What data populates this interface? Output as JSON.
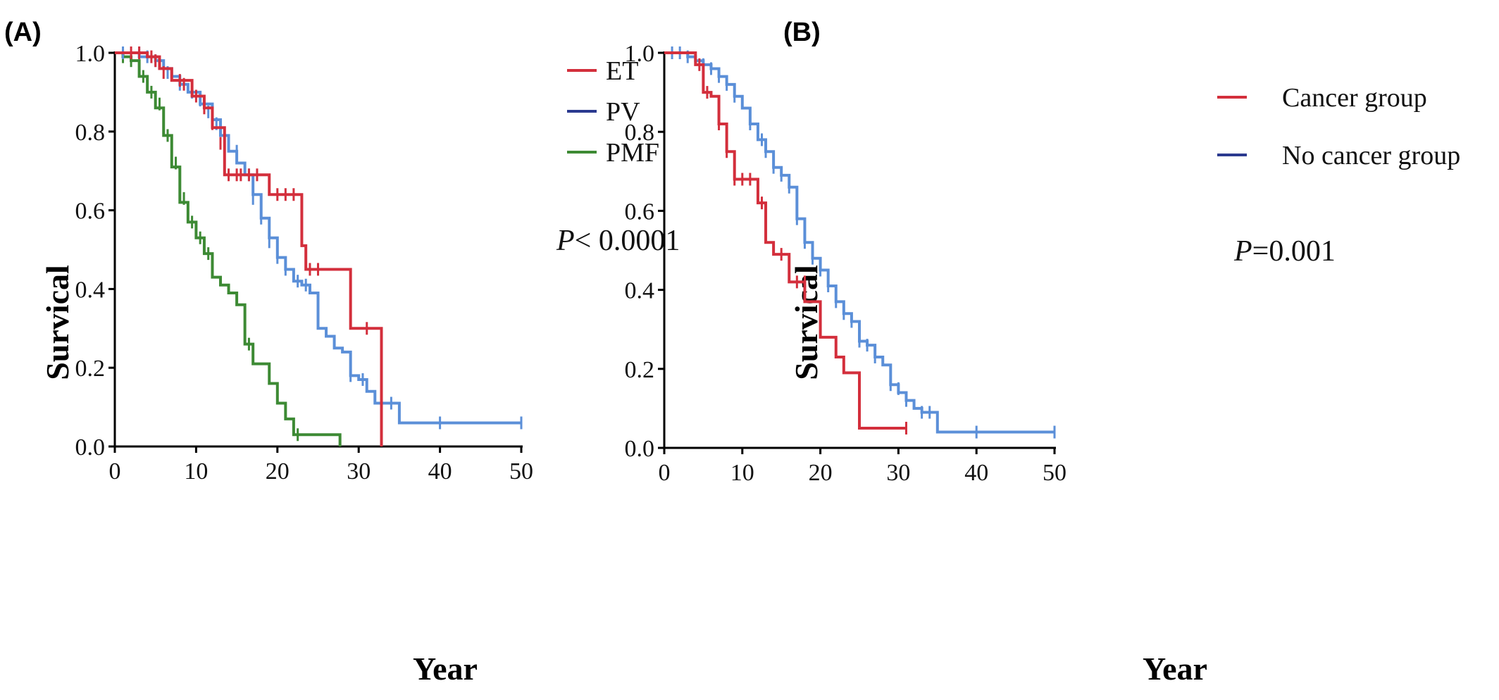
{
  "chart_data": [
    {
      "panel": "(A)",
      "type": "line",
      "xlabel": "Year",
      "ylabel": "Survical",
      "xlim": [
        0,
        50
      ],
      "ylim": [
        0,
        1
      ],
      "xticks": [
        "0",
        "10",
        "20",
        "30",
        "40",
        "50"
      ],
      "yticks": [
        "0.0",
        "0.2",
        "0.4",
        "0.6",
        "0.8",
        "1.0"
      ],
      "annotation": {
        "italic": "P",
        "rest": "< 0.0001"
      },
      "legend": "top-right",
      "series": [
        {
          "name": "ET",
          "color": "#d32f3c",
          "steps": [
            [
              0,
              1.0
            ],
            [
              4,
              0.99
            ],
            [
              5.5,
              0.96
            ],
            [
              7,
              0.93
            ],
            [
              9.5,
              0.89
            ],
            [
              11,
              0.86
            ],
            [
              12,
              0.81
            ],
            [
              13.5,
              0.69
            ],
            [
              19,
              0.64
            ],
            [
              23,
              0.51
            ],
            [
              23.5,
              0.45
            ],
            [
              29,
              0.3
            ],
            [
              32.8,
              0.0
            ]
          ],
          "censors": [
            [
              2,
              1.0
            ],
            [
              3,
              1.0
            ],
            [
              4.5,
              0.99
            ],
            [
              5,
              0.98
            ],
            [
              6,
              0.95
            ],
            [
              8,
              0.93
            ],
            [
              8.5,
              0.92
            ],
            [
              10,
              0.89
            ],
            [
              11,
              0.86
            ],
            [
              12,
              0.82
            ],
            [
              13,
              0.77
            ],
            [
              14,
              0.69
            ],
            [
              15,
              0.69
            ],
            [
              15.5,
              0.69
            ],
            [
              16.5,
              0.69
            ],
            [
              17.5,
              0.69
            ],
            [
              20,
              0.64
            ],
            [
              21,
              0.64
            ],
            [
              22,
              0.64
            ],
            [
              24,
              0.45
            ],
            [
              25,
              0.45
            ],
            [
              31,
              0.3
            ]
          ]
        },
        {
          "name": "PV",
          "color": "#5b8fd8",
          "steps": [
            [
              0,
              1.0
            ],
            [
              3,
              0.99
            ],
            [
              5,
              0.98
            ],
            [
              6,
              0.96
            ],
            [
              7,
              0.94
            ],
            [
              8,
              0.92
            ],
            [
              9,
              0.9
            ],
            [
              10.5,
              0.87
            ],
            [
              12,
              0.83
            ],
            [
              13,
              0.79
            ],
            [
              14,
              0.75
            ],
            [
              15,
              0.72
            ],
            [
              16,
              0.69
            ],
            [
              17,
              0.64
            ],
            [
              18,
              0.58
            ],
            [
              19,
              0.53
            ],
            [
              20,
              0.48
            ],
            [
              21,
              0.45
            ],
            [
              22,
              0.42
            ],
            [
              23,
              0.41
            ],
            [
              24,
              0.39
            ],
            [
              25,
              0.3
            ],
            [
              26,
              0.28
            ],
            [
              27,
              0.25
            ],
            [
              28,
              0.24
            ],
            [
              29,
              0.18
            ],
            [
              30,
              0.17
            ],
            [
              31,
              0.14
            ],
            [
              32,
              0.11
            ],
            [
              35,
              0.06
            ],
            [
              50,
              0.06
            ]
          ],
          "censors": [
            [
              1,
              1.0
            ],
            [
              3,
              1.0
            ],
            [
              4,
              0.99
            ],
            [
              5,
              0.98
            ],
            [
              6.5,
              0.95
            ],
            [
              8,
              0.92
            ],
            [
              9.5,
              0.9
            ],
            [
              10.5,
              0.88
            ],
            [
              11.5,
              0.85
            ],
            [
              12.5,
              0.82
            ],
            [
              13.5,
              0.79
            ],
            [
              15,
              0.75
            ],
            [
              16.5,
              0.69
            ],
            [
              17,
              0.63
            ],
            [
              18,
              0.58
            ],
            [
              19,
              0.52
            ],
            [
              20,
              0.48
            ],
            [
              21,
              0.45
            ],
            [
              22.5,
              0.42
            ],
            [
              23.5,
              0.41
            ],
            [
              29,
              0.18
            ],
            [
              30.5,
              0.17
            ],
            [
              34,
              0.11
            ],
            [
              40,
              0.06
            ],
            [
              50,
              0.06
            ]
          ]
        },
        {
          "name": "PMF",
          "color": "#3d8a34",
          "steps": [
            [
              0,
              1.0
            ],
            [
              1,
              0.99
            ],
            [
              2,
              0.98
            ],
            [
              3,
              0.94
            ],
            [
              4,
              0.9
            ],
            [
              5,
              0.86
            ],
            [
              6,
              0.79
            ],
            [
              7,
              0.71
            ],
            [
              8,
              0.62
            ],
            [
              9,
              0.57
            ],
            [
              10,
              0.53
            ],
            [
              11,
              0.49
            ],
            [
              12,
              0.43
            ],
            [
              13,
              0.41
            ],
            [
              14,
              0.39
            ],
            [
              15,
              0.36
            ],
            [
              16,
              0.26
            ],
            [
              17,
              0.21
            ],
            [
              19,
              0.16
            ],
            [
              20,
              0.11
            ],
            [
              21,
              0.07
            ],
            [
              22,
              0.03
            ],
            [
              27.7,
              0.0
            ]
          ],
          "censors": [
            [
              1,
              0.99
            ],
            [
              2,
              0.98
            ],
            [
              3.5,
              0.94
            ],
            [
              4.5,
              0.9
            ],
            [
              5.5,
              0.87
            ],
            [
              6.5,
              0.79
            ],
            [
              7.5,
              0.72
            ],
            [
              8.5,
              0.63
            ],
            [
              9.5,
              0.57
            ],
            [
              10.5,
              0.53
            ],
            [
              11.5,
              0.49
            ],
            [
              16.5,
              0.26
            ],
            [
              22.5,
              0.03
            ]
          ]
        }
      ]
    },
    {
      "panel": "(B)",
      "type": "line",
      "xlabel": "Year",
      "ylabel": "Survical",
      "xlim": [
        0,
        50
      ],
      "ylim": [
        0,
        1
      ],
      "xticks": [
        "0",
        "10",
        "20",
        "30",
        "40",
        "50"
      ],
      "yticks": [
        "0.0",
        "0.2",
        "0.4",
        "0.6",
        "0.8",
        "1.0"
      ],
      "annotation": {
        "italic": "P",
        "rest": "=0.001"
      },
      "legend": "top-right",
      "series": [
        {
          "name": "Cancer group",
          "color": "#d32f3c",
          "steps": [
            [
              0,
              1.0
            ],
            [
              4,
              0.97
            ],
            [
              5,
              0.9
            ],
            [
              6,
              0.89
            ],
            [
              7,
              0.82
            ],
            [
              8,
              0.75
            ],
            [
              9,
              0.68
            ],
            [
              12,
              0.62
            ],
            [
              13,
              0.52
            ],
            [
              14,
              0.49
            ],
            [
              16,
              0.42
            ],
            [
              18,
              0.37
            ],
            [
              20,
              0.28
            ],
            [
              22,
              0.23
            ],
            [
              23,
              0.19
            ],
            [
              25,
              0.05
            ],
            [
              31,
              0.05
            ]
          ],
          "censors": [
            [
              4.5,
              0.97
            ],
            [
              5.5,
              0.9
            ],
            [
              7,
              0.82
            ],
            [
              8,
              0.75
            ],
            [
              9,
              0.68
            ],
            [
              10,
              0.68
            ],
            [
              11,
              0.68
            ],
            [
              12.5,
              0.62
            ],
            [
              15,
              0.49
            ],
            [
              17,
              0.42
            ],
            [
              18,
              0.42
            ],
            [
              31,
              0.05
            ]
          ]
        },
        {
          "name": "No cancer group",
          "color": "#5b8fd8",
          "steps": [
            [
              0,
              1.0
            ],
            [
              3,
              0.99
            ],
            [
              4,
              0.98
            ],
            [
              5,
              0.97
            ],
            [
              6,
              0.96
            ],
            [
              7,
              0.94
            ],
            [
              8,
              0.92
            ],
            [
              9,
              0.89
            ],
            [
              10,
              0.86
            ],
            [
              11,
              0.82
            ],
            [
              12,
              0.78
            ],
            [
              13,
              0.75
            ],
            [
              14,
              0.71
            ],
            [
              15,
              0.69
            ],
            [
              16,
              0.66
            ],
            [
              17,
              0.58
            ],
            [
              18,
              0.52
            ],
            [
              19,
              0.48
            ],
            [
              20,
              0.45
            ],
            [
              21,
              0.41
            ],
            [
              22,
              0.37
            ],
            [
              23,
              0.34
            ],
            [
              24,
              0.32
            ],
            [
              25,
              0.27
            ],
            [
              26,
              0.26
            ],
            [
              27,
              0.23
            ],
            [
              28,
              0.21
            ],
            [
              29,
              0.16
            ],
            [
              30,
              0.14
            ],
            [
              31,
              0.12
            ],
            [
              32,
              0.1
            ],
            [
              33,
              0.09
            ],
            [
              35,
              0.04
            ],
            [
              50,
              0.04
            ]
          ],
          "censors": [
            [
              1,
              1.0
            ],
            [
              2,
              1.0
            ],
            [
              3,
              0.99
            ],
            [
              5,
              0.97
            ],
            [
              6,
              0.96
            ],
            [
              7,
              0.94
            ],
            [
              8,
              0.92
            ],
            [
              9,
              0.89
            ],
            [
              11,
              0.82
            ],
            [
              12.5,
              0.78
            ],
            [
              13,
              0.75
            ],
            [
              14,
              0.71
            ],
            [
              15,
              0.69
            ],
            [
              16,
              0.66
            ],
            [
              17,
              0.58
            ],
            [
              18,
              0.52
            ],
            [
              19,
              0.48
            ],
            [
              20,
              0.45
            ],
            [
              21,
              0.41
            ],
            [
              22,
              0.37
            ],
            [
              23,
              0.34
            ],
            [
              24,
              0.32
            ],
            [
              25,
              0.27
            ],
            [
              26,
              0.26
            ],
            [
              27,
              0.23
            ],
            [
              29,
              0.16
            ],
            [
              30,
              0.15
            ],
            [
              31,
              0.12
            ],
            [
              33,
              0.09
            ],
            [
              34,
              0.09
            ],
            [
              40,
              0.04
            ],
            [
              50,
              0.04
            ]
          ]
        }
      ]
    }
  ]
}
